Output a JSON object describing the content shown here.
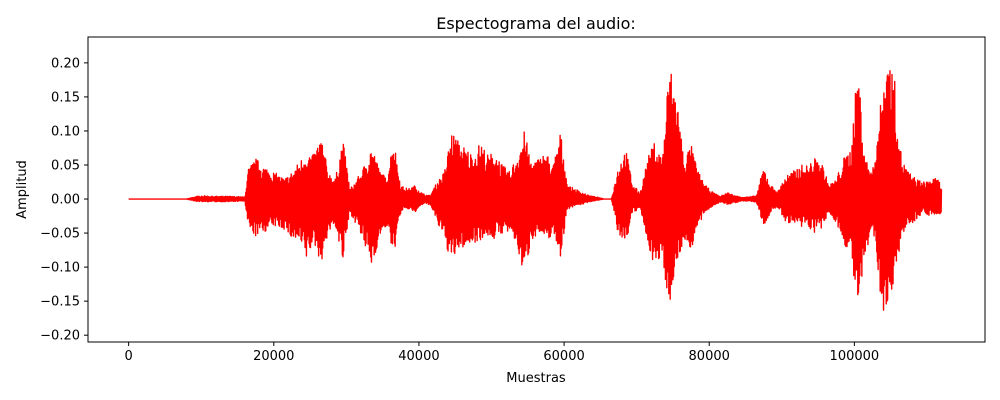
{
  "chart_data": {
    "type": "line",
    "title": "Espectograma del audio:",
    "xlabel": "Muestras",
    "ylabel": "Amplitud",
    "xlim": [
      -5600,
      118000
    ],
    "ylim": [
      -0.21,
      0.238
    ],
    "grid": false,
    "x_ticks": [
      0,
      20000,
      40000,
      60000,
      80000,
      100000
    ],
    "x_tick_labels": [
      "0",
      "20000",
      "40000",
      "60000",
      "80000",
      "100000"
    ],
    "y_ticks": [
      -0.2,
      -0.15,
      -0.1,
      -0.05,
      0.0,
      0.05,
      0.1,
      0.15,
      0.2
    ],
    "y_tick_labels": [
      "−0.20",
      "−0.15",
      "−0.10",
      "−0.05",
      "0.00",
      "0.05",
      "0.10",
      "0.15",
      "0.20"
    ],
    "series": [
      {
        "color": "#ff0000",
        "envelope_x": [
          0,
          8000,
          9000,
          10000,
          12000,
          14000,
          16000,
          16500,
          17500,
          18500,
          20000,
          21500,
          22500,
          23500,
          24500,
          25500,
          26500,
          27500,
          28500,
          29500,
          30500,
          31500,
          32500,
          33500,
          34500,
          35500,
          36500,
          37500,
          38500,
          39500,
          40500,
          41500,
          42500,
          43500,
          44500,
          45500,
          46500,
          47500,
          48500,
          49500,
          50500,
          51500,
          52500,
          53500,
          54500,
          55500,
          56500,
          57500,
          58500,
          59500,
          60500,
          61500,
          62500,
          63500,
          64500,
          65500,
          66500,
          67500,
          68500,
          69500,
          70500,
          71500,
          72500,
          73500,
          74500,
          75500,
          76500,
          77500,
          78500,
          79500,
          80500,
          81500,
          82500,
          83500,
          84500,
          85500,
          86500,
          87500,
          88500,
          89500,
          90500,
          91500,
          92500,
          93500,
          94500,
          95500,
          96500,
          97500,
          98500,
          99500,
          100500,
          101500,
          102500,
          103500,
          104500,
          105500,
          106500,
          107500,
          108500,
          109500,
          110500,
          111500,
          112000
        ],
        "envelope_max": [
          0.0,
          0.0,
          0.003,
          0.005,
          0.004,
          0.004,
          0.003,
          0.045,
          0.06,
          0.05,
          0.04,
          0.03,
          0.04,
          0.055,
          0.07,
          0.065,
          0.095,
          0.04,
          0.03,
          0.09,
          0.015,
          0.03,
          0.05,
          0.08,
          0.045,
          0.03,
          0.09,
          0.02,
          0.015,
          0.02,
          0.008,
          0.005,
          0.025,
          0.04,
          0.1,
          0.085,
          0.075,
          0.065,
          0.085,
          0.065,
          0.07,
          0.05,
          0.04,
          0.065,
          0.1,
          0.055,
          0.06,
          0.07,
          0.05,
          0.1,
          0.02,
          0.015,
          0.01,
          0.005,
          0.003,
          0.0,
          0.0,
          0.05,
          0.075,
          0.02,
          0.01,
          0.06,
          0.085,
          0.06,
          0.2,
          0.16,
          0.06,
          0.08,
          0.04,
          0.02,
          0.01,
          0.004,
          0.01,
          0.005,
          0.003,
          0.003,
          0.005,
          0.048,
          0.02,
          0.012,
          0.035,
          0.04,
          0.05,
          0.05,
          0.06,
          0.055,
          0.02,
          0.03,
          0.06,
          0.075,
          0.2,
          0.06,
          0.04,
          0.13,
          0.22,
          0.18,
          0.06,
          0.04,
          0.03,
          0.025,
          0.03,
          0.03,
          0.02
        ],
        "envelope_min": [
          0.0,
          0.0,
          -0.003,
          -0.004,
          -0.004,
          -0.004,
          -0.003,
          -0.045,
          -0.055,
          -0.05,
          -0.04,
          -0.045,
          -0.06,
          -0.065,
          -0.09,
          -0.065,
          -0.095,
          -0.05,
          -0.04,
          -0.095,
          -0.02,
          -0.04,
          -0.07,
          -0.1,
          -0.06,
          -0.04,
          -0.085,
          -0.02,
          -0.015,
          -0.02,
          -0.008,
          -0.008,
          -0.035,
          -0.06,
          -0.095,
          -0.075,
          -0.07,
          -0.065,
          -0.06,
          -0.055,
          -0.06,
          -0.05,
          -0.05,
          -0.07,
          -0.115,
          -0.06,
          -0.05,
          -0.065,
          -0.05,
          -0.085,
          -0.015,
          -0.01,
          -0.008,
          -0.004,
          -0.002,
          0.0,
          0.0,
          -0.055,
          -0.065,
          -0.02,
          -0.015,
          -0.065,
          -0.1,
          -0.09,
          -0.155,
          -0.1,
          -0.06,
          -0.075,
          -0.04,
          -0.02,
          -0.01,
          -0.005,
          -0.008,
          -0.006,
          -0.003,
          -0.003,
          -0.005,
          -0.04,
          -0.02,
          -0.012,
          -0.035,
          -0.035,
          -0.045,
          -0.04,
          -0.05,
          -0.045,
          -0.02,
          -0.035,
          -0.065,
          -0.08,
          -0.17,
          -0.09,
          -0.04,
          -0.135,
          -0.19,
          -0.12,
          -0.055,
          -0.04,
          -0.03,
          -0.02,
          -0.025,
          -0.025,
          -0.02
        ]
      }
    ]
  }
}
